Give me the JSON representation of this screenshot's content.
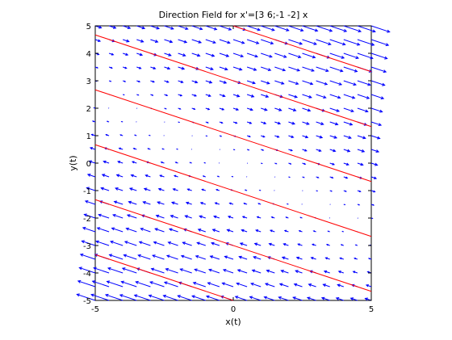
{
  "chart_data": {
    "type": "quiver",
    "title": "Direction Field for x'=[3 6;-1 -2] x",
    "xlabel": "x(t)",
    "ylabel": "y(t)",
    "xlim": [
      -5,
      5
    ],
    "ylim": [
      -5,
      5
    ],
    "grid": false,
    "matrix": [
      [
        3,
        6
      ],
      [
        -1,
        -2
      ]
    ],
    "xticks": [
      -5,
      0,
      5
    ],
    "yticks": [
      -5,
      -4,
      -3,
      -2,
      -1,
      0,
      1,
      2,
      3,
      4,
      5
    ],
    "arrow_color": "#0000ff",
    "trajectory_color": "#ff0000",
    "trajectories": [
      {
        "x": [
          0,
          5
        ],
        "y": [
          5,
          3.33
        ]
      },
      {
        "x": [
          -5,
          5
        ],
        "y": [
          4.67,
          1.33
        ]
      },
      {
        "x": [
          -5,
          5
        ],
        "y": [
          2.67,
          -0.67
        ]
      },
      {
        "x": [
          -5,
          5
        ],
        "y": [
          0.67,
          -2.67
        ]
      },
      {
        "x": [
          -5,
          5
        ],
        "y": [
          -1.33,
          -4.67
        ]
      },
      {
        "x": [
          -5,
          0
        ],
        "y": [
          -3.33,
          -5
        ]
      }
    ]
  }
}
